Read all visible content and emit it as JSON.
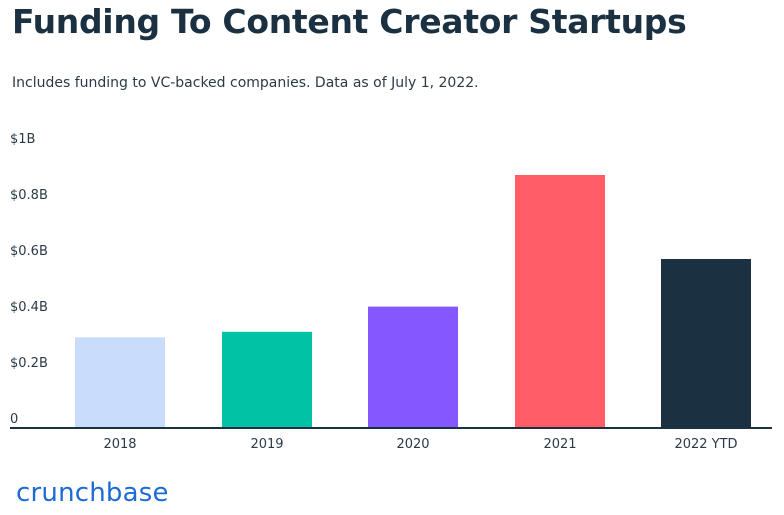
{
  "chart_data": {
    "type": "bar",
    "title": "Funding To Content Creator Startups",
    "subtitle": "Includes funding to VC-backed companies. Data as of July 1, 2022.",
    "categories": [
      "2018",
      "2019",
      "2020",
      "2021",
      "2022 YTD"
    ],
    "values": [
      0.32,
      0.34,
      0.43,
      0.9,
      0.6
    ],
    "colors": [
      "#c9dcfb",
      "#00c3a5",
      "#8457ff",
      "#ff5e67",
      "#1b3142"
    ],
    "yticks": [
      "0",
      "$0.2B",
      "$0.4B",
      "$0.6B",
      "$0.8B",
      "$1B"
    ],
    "ytick_values": [
      0,
      0.2,
      0.4,
      0.6,
      0.8,
      1.0
    ],
    "ylim": [
      0,
      1.0
    ],
    "unit": "billion USD",
    "grid": false,
    "axis_color": "#1b3142"
  },
  "branding": {
    "logo_text": "crunchbase",
    "logo_color": "#1e6bd6"
  }
}
